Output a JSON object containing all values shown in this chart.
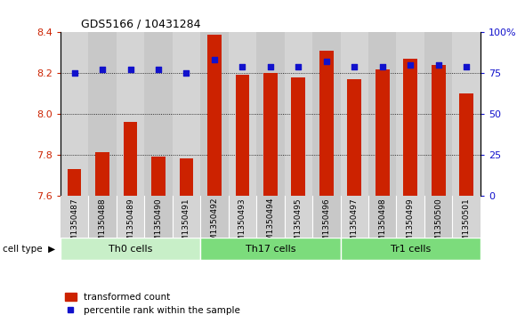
{
  "title": "GDS5166 / 10431284",
  "samples": [
    "GSM1350487",
    "GSM1350488",
    "GSM1350489",
    "GSM1350490",
    "GSM1350491",
    "GSM1350492",
    "GSM1350493",
    "GSM1350494",
    "GSM1350495",
    "GSM1350496",
    "GSM1350497",
    "GSM1350498",
    "GSM1350499",
    "GSM1350500",
    "GSM1350501"
  ],
  "transformed_count": [
    7.73,
    7.81,
    7.96,
    7.79,
    7.78,
    8.39,
    8.19,
    8.2,
    8.18,
    8.31,
    8.17,
    8.22,
    8.27,
    8.24,
    8.1
  ],
  "percentile_rank": [
    75,
    77,
    77,
    77,
    75,
    83,
    79,
    79,
    79,
    82,
    79,
    79,
    80,
    80,
    79
  ],
  "cell_type_groups": [
    {
      "label": "Th0 cells",
      "start": 0,
      "end": 5,
      "color": "#c8efc8"
    },
    {
      "label": "Th17 cells",
      "start": 5,
      "end": 10,
      "color": "#7cdc7c"
    },
    {
      "label": "Tr1 cells",
      "start": 10,
      "end": 15,
      "color": "#7cdc7c"
    }
  ],
  "ylim": [
    7.6,
    8.4
  ],
  "yticks": [
    7.6,
    7.8,
    8.0,
    8.2,
    8.4
  ],
  "y2lim": [
    0,
    100
  ],
  "y2ticks": [
    0,
    25,
    50,
    75,
    100
  ],
  "y2ticklabels": [
    "0",
    "25",
    "50",
    "75",
    "100%"
  ],
  "bar_color": "#cc2200",
  "dot_color": "#1111cc",
  "col_bg_even": "#d4d4d4",
  "col_bg_odd": "#c8c8c8",
  "plot_bg": "#ffffff",
  "bar_width": 0.5,
  "legend_bar_label": "transformed count",
  "legend_dot_label": "percentile rank within the sample",
  "cell_type_label": "cell type"
}
